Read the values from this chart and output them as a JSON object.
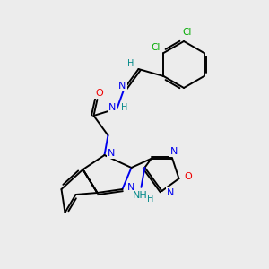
{
  "background_color": "#ececec",
  "C": "#000000",
  "N": "#0000ee",
  "O": "#ee0000",
  "Cl": "#00aa00",
  "H": "#008888",
  "lw": 1.4,
  "fs": 7.5
}
